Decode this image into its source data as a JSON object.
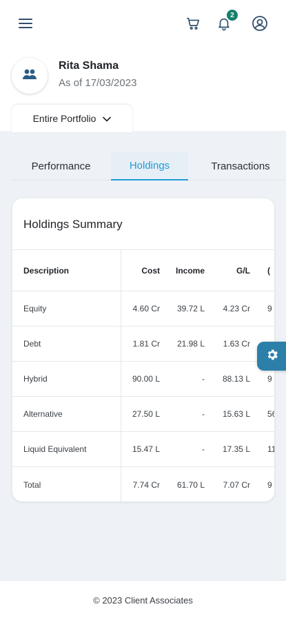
{
  "header": {
    "menu_icon": "hamburger-menu-icon",
    "cart_icon": "cart-icon",
    "notification_icon": "bell-icon",
    "notification_count": "2",
    "profile_icon": "user-circle-icon"
  },
  "profile": {
    "avatar_icon": "users-icon",
    "name": "Rita Shama",
    "as_of": "As of 17/03/2023"
  },
  "portfolio_selector": {
    "label": "Entire Portfolio",
    "icon": "chevron-down-icon"
  },
  "tabs": [
    {
      "label": "Performance",
      "active": false
    },
    {
      "label": "Holdings",
      "active": true
    },
    {
      "label": "Transactions",
      "active": false
    }
  ],
  "holdings": {
    "title": "Holdings Summary",
    "columns": [
      "Description",
      "Cost",
      "Income",
      "G/L",
      "("
    ],
    "rows": [
      {
        "description": "Equity",
        "cost": "4.60 Cr",
        "income": "39.72 L",
        "gl": "4.23 Cr",
        "extra": "9"
      },
      {
        "description": "Debt",
        "cost": "1.81 Cr",
        "income": "21.98 L",
        "gl": "1.63 Cr",
        "extra": ""
      },
      {
        "description": "Hybrid",
        "cost": "90.00 L",
        "income": "-",
        "gl": "88.13 L",
        "extra": "9"
      },
      {
        "description": "Alternative",
        "cost": "27.50 L",
        "income": "-",
        "gl": "15.63 L",
        "extra": "56"
      },
      {
        "description": "Liquid Equivalent",
        "cost": "15.47 L",
        "income": "-",
        "gl": "17.35 L",
        "extra": "11"
      },
      {
        "description": "Total",
        "cost": "7.74 Cr",
        "income": "61.70 L",
        "gl": "7.07 Cr",
        "extra": "9"
      }
    ]
  },
  "settings_fab": {
    "icon": "gear-icon"
  },
  "footer": {
    "text": "© 2023 Client Associates"
  },
  "colors": {
    "accent": "#1f9bd6",
    "badge": "#15806c",
    "fab": "#2c7fa8",
    "background": "#eef2f7"
  }
}
